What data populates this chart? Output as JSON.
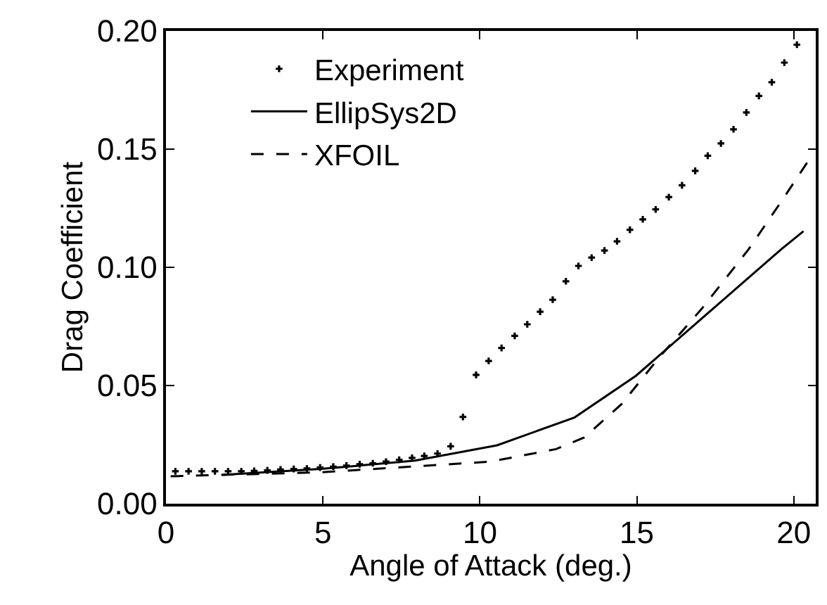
{
  "chart_data": {
    "type": "line",
    "xlabel": "Angle of Attack (deg.)",
    "ylabel": "Drag Coefficient",
    "xlim": [
      0,
      20.7
    ],
    "xticks": [
      0,
      5,
      10,
      15,
      20
    ],
    "ylim": [
      0,
      0.2
    ],
    "yticks": [
      {
        "value": 0,
        "label": "0.00"
      },
      {
        "value": 0.05,
        "label": "0.05"
      },
      {
        "value": 0.1,
        "label": "0.10"
      },
      {
        "value": 0.15,
        "label": "0.15"
      },
      {
        "value": 0.2,
        "label": "0.20"
      }
    ],
    "legend": "top left",
    "series": [
      {
        "name": "Experiment",
        "type": "scatter",
        "marker": "cross",
        "color": "#000000",
        "x": [
          0.3,
          0.72,
          1.14,
          1.56,
          1.98,
          2.4,
          2.81,
          3.23,
          3.65,
          4.07,
          4.49,
          4.91,
          5.33,
          5.75,
          6.17,
          6.59,
          7.01,
          7.43,
          7.84,
          8.23,
          8.65,
          9.07,
          9.46,
          9.88,
          10.28,
          10.69,
          11.11,
          11.51,
          11.92,
          12.32,
          12.74,
          13.14,
          13.56,
          13.97,
          14.37,
          14.78,
          15.19,
          15.6,
          16.02,
          16.44,
          16.86,
          17.26,
          17.68,
          18.08,
          18.49,
          18.89,
          19.3,
          19.7,
          20.1
        ],
        "values": [
          0.0137,
          0.0137,
          0.0137,
          0.0137,
          0.0137,
          0.0137,
          0.0139,
          0.0141,
          0.0145,
          0.0147,
          0.0149,
          0.0153,
          0.0157,
          0.0161,
          0.0167,
          0.0171,
          0.0178,
          0.0186,
          0.0194,
          0.0202,
          0.0212,
          0.0243,
          0.0367,
          0.0545,
          0.0604,
          0.0659,
          0.071,
          0.0759,
          0.0812,
          0.0863,
          0.0941,
          0.1006,
          0.1041,
          0.1071,
          0.111,
          0.1159,
          0.1203,
          0.1245,
          0.1297,
          0.1347,
          0.1408,
          0.1472,
          0.1524,
          0.1584,
          0.1655,
          0.1725,
          0.1783,
          0.1866,
          0.1942
        ]
      },
      {
        "name": "EllipSys2D",
        "line_style": "solid",
        "color": "#000000",
        "x": [
          1.8,
          4.94,
          7.93,
          10.55,
          13.02,
          14.97,
          19.6,
          20.31
        ],
        "values": [
          0.0122,
          0.0147,
          0.0182,
          0.0247,
          0.0365,
          0.0541,
          0.1076,
          0.1153
        ]
      },
      {
        "name": "XFOIL",
        "line_style": "dashed",
        "color": "#000000",
        "x": [
          0.15,
          4.94,
          10.33,
          12.43,
          13.32,
          14.52,
          15.72,
          17.07,
          18.56,
          19.61,
          20.6
        ],
        "values": [
          0.0116,
          0.0133,
          0.0178,
          0.0231,
          0.028,
          0.0422,
          0.062,
          0.0825,
          0.1076,
          0.128,
          0.1478
        ]
      }
    ]
  }
}
